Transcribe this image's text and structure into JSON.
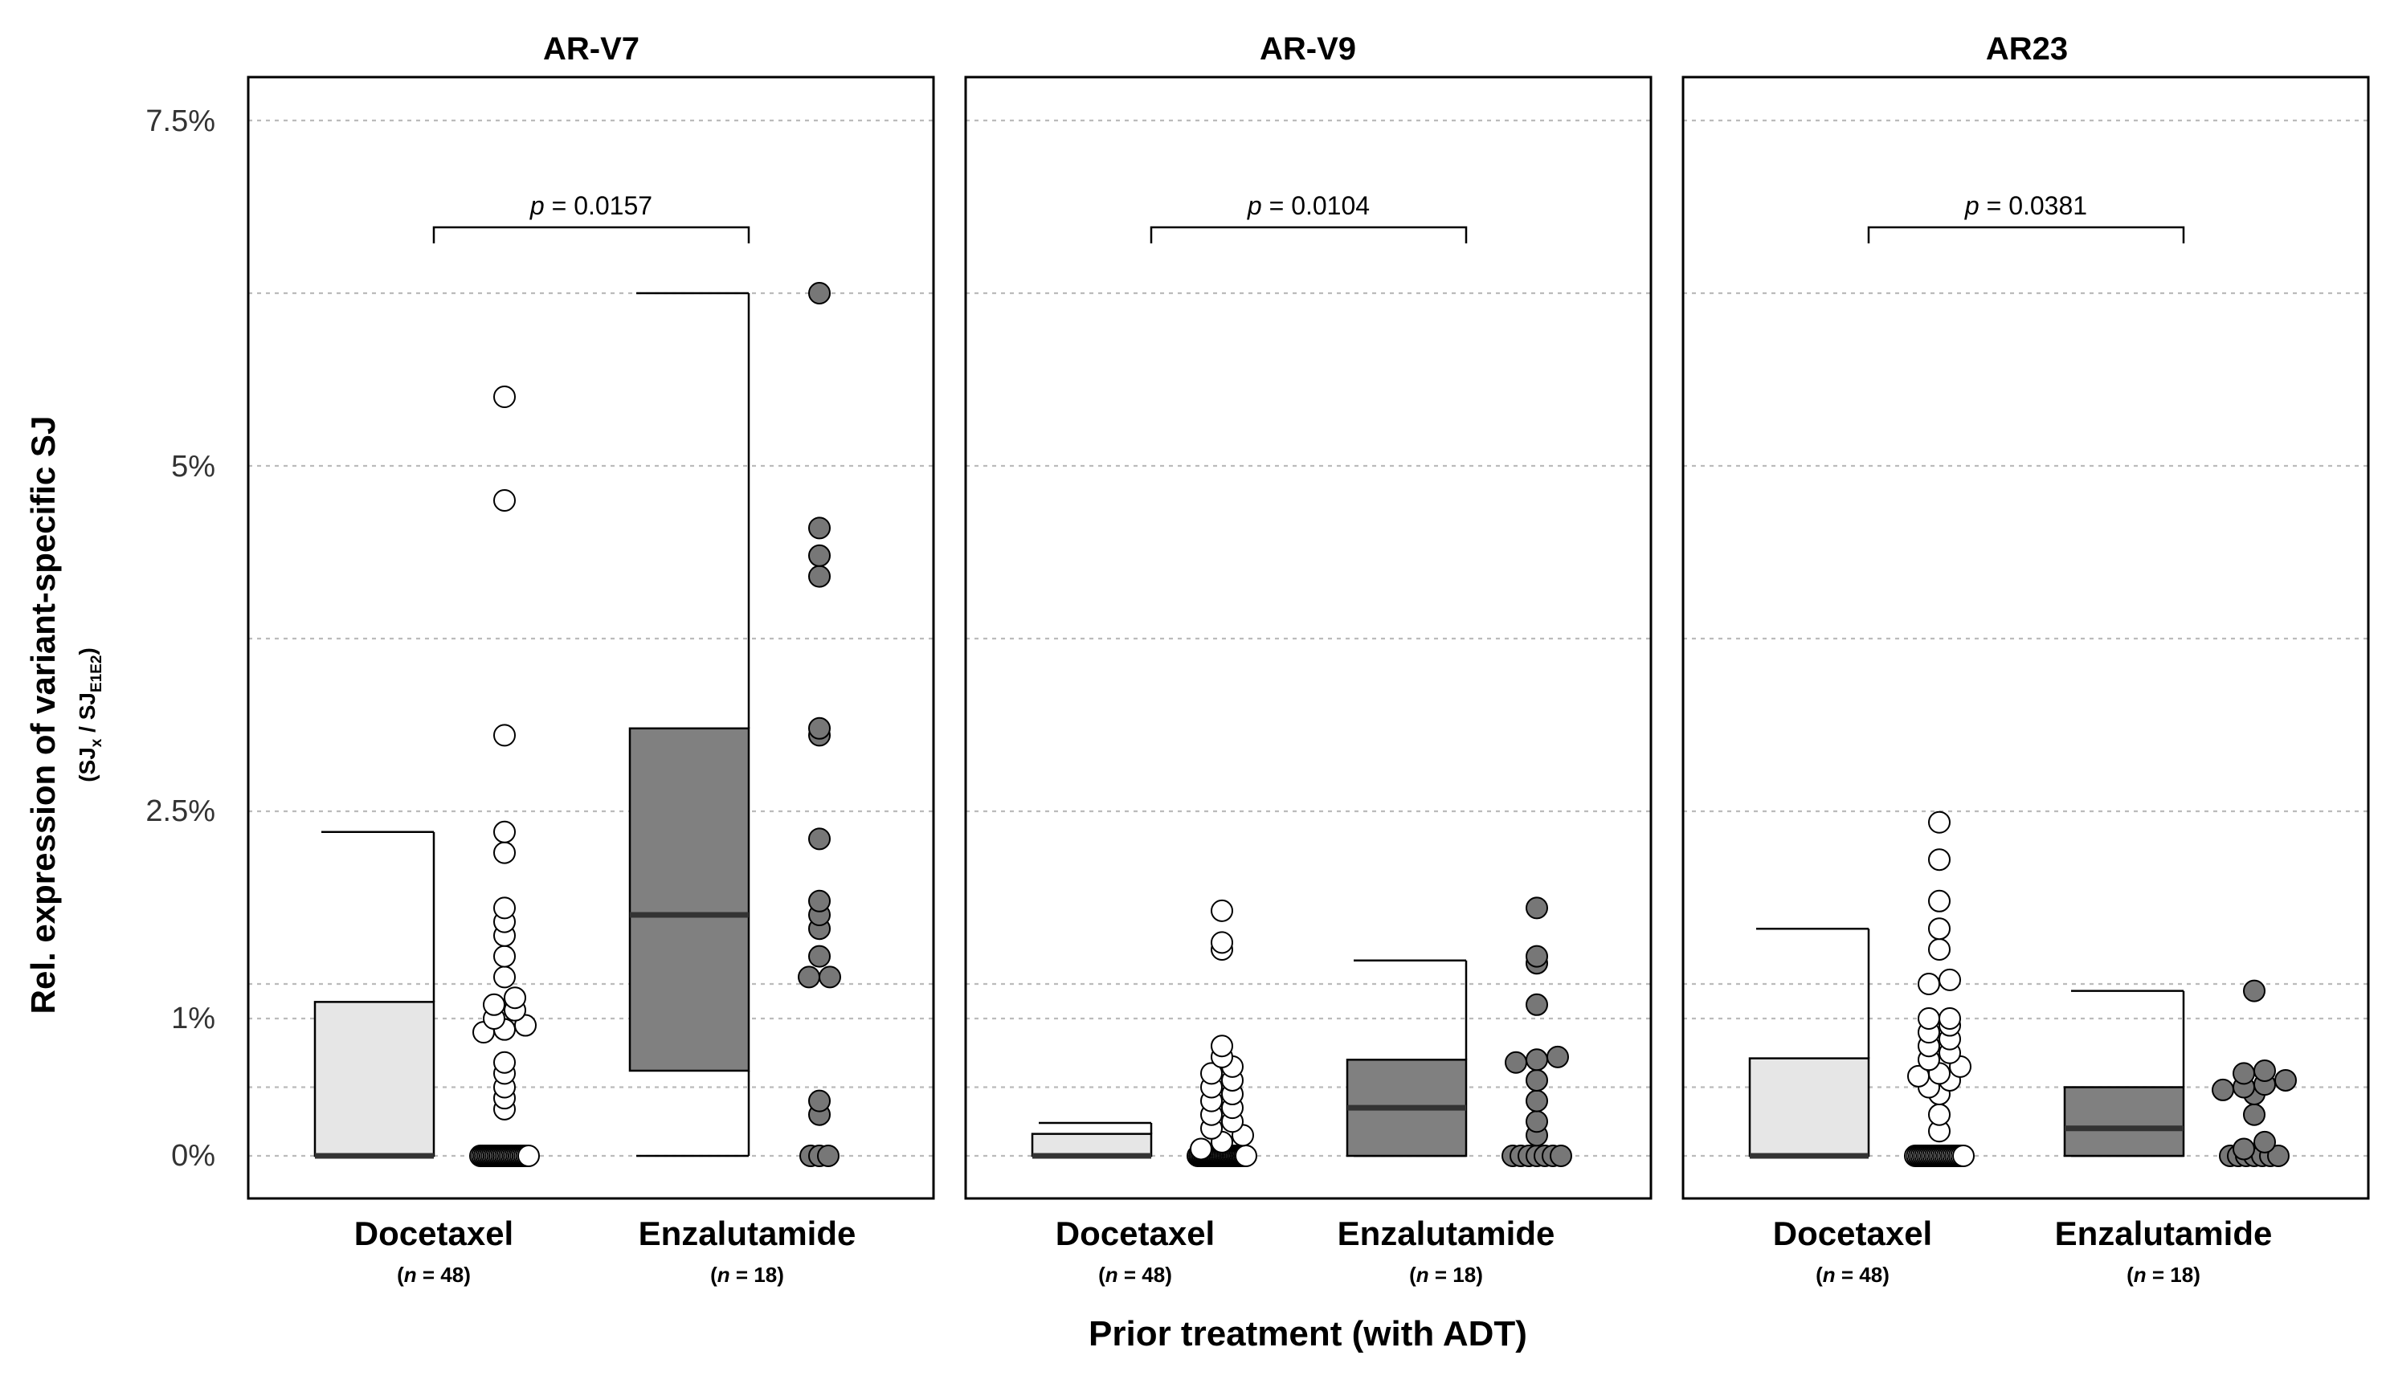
{
  "chart_data": {
    "type": "box",
    "ylabel": "Rel. expression of variant-specific SJ",
    "ylabel_sub": {
      "open": "(SJ",
      "sub_x": "x",
      "mid": " / SJ",
      "sub_e": "E1E2",
      "close": ")"
    },
    "xlabel": "Prior treatment (with ADT)",
    "y_ticks": [
      "0%",
      "1%",
      "2.5%",
      "5%",
      "7.5%"
    ],
    "colors": {
      "docetaxel_fill": "#e6e6e6",
      "enzalutamide_fill": "#808080",
      "grid": "#bbbbbb",
      "frame": "#000000"
    },
    "panels": [
      {
        "title": "AR-V7",
        "p_prefix": "p",
        "p_value": " = 0.0157",
        "groups": [
          {
            "name": "Docetaxel",
            "n_label": "n",
            "n_value": " = 48",
            "box": {
              "q1": 0.0,
              "median": 0.0,
              "q3": 1.12,
              "whisker_low": 0.0,
              "whisker_high": 2.35
            },
            "points": [
              0,
              0,
              0,
              0,
              0,
              0,
              0,
              0,
              0,
              0,
              0,
              0,
              0,
              0,
              0,
              0,
              0,
              0,
              0,
              0,
              0,
              0,
              0,
              0,
              0,
              0,
              0.34,
              0.42,
              0.5,
              0.6,
              0.68,
              0.9,
              0.92,
              0.95,
              1.0,
              1.06,
              1.1,
              1.15,
              1.3,
              1.45,
              1.6,
              1.7,
              1.8,
              2.2,
              2.35,
              3.05,
              4.75,
              5.5
            ]
          },
          {
            "name": "Enzalutamide",
            "n_label": "n",
            "n_value": " = 18",
            "box": {
              "q1": 0.62,
              "median": 1.75,
              "q3": 3.1,
              "whisker_low": 0.0,
              "whisker_high": 6.25
            },
            "points": [
              0,
              0,
              0,
              0.3,
              0.4,
              1.3,
              1.3,
              1.45,
              1.65,
              1.75,
              1.85,
              2.3,
              3.05,
              3.1,
              4.2,
              4.35,
              4.55,
              6.25
            ]
          }
        ]
      },
      {
        "title": "AR-V9",
        "p_prefix": "p",
        "p_value": " = 0.0104",
        "groups": [
          {
            "name": "Docetaxel",
            "n_label": "n",
            "n_value": " = 48",
            "box": {
              "q1": 0.0,
              "median": 0.0,
              "q3": 0.16,
              "whisker_low": 0.0,
              "whisker_high": 0.24
            },
            "points": [
              0,
              0,
              0,
              0,
              0,
              0,
              0,
              0,
              0,
              0,
              0,
              0,
              0,
              0,
              0,
              0,
              0,
              0,
              0,
              0,
              0,
              0,
              0,
              0,
              0,
              0,
              0,
              0,
              0,
              0,
              0.05,
              0.1,
              0.15,
              0.2,
              0.25,
              0.3,
              0.35,
              0.4,
              0.45,
              0.5,
              0.55,
              0.6,
              0.65,
              0.72,
              0.8,
              1.5,
              1.55,
              1.78
            ]
          },
          {
            "name": "Enzalutamide",
            "n_label": "n",
            "n_value": " = 18",
            "box": {
              "q1": 0.0,
              "median": 0.35,
              "q3": 0.7,
              "whisker_low": 0.0,
              "whisker_high": 1.42
            },
            "points": [
              0,
              0,
              0,
              0,
              0,
              0,
              0,
              0.15,
              0.25,
              0.4,
              0.55,
              0.68,
              0.7,
              0.72,
              1.1,
              1.4,
              1.45,
              1.8
            ]
          }
        ]
      },
      {
        "title": "AR23",
        "p_prefix": "p",
        "p_value": " = 0.0381",
        "groups": [
          {
            "name": "Docetaxel",
            "n_label": "n",
            "n_value": " = 48",
            "box": {
              "q1": 0.0,
              "median": 0.0,
              "q3": 0.71,
              "whisker_low": 0.0,
              "whisker_high": 1.65
            },
            "points": [
              0,
              0,
              0,
              0,
              0,
              0,
              0,
              0,
              0,
              0,
              0,
              0,
              0,
              0,
              0,
              0,
              0,
              0,
              0,
              0,
              0,
              0,
              0,
              0,
              0,
              0.18,
              0.3,
              0.45,
              0.5,
              0.55,
              0.58,
              0.6,
              0.65,
              0.7,
              0.75,
              0.8,
              0.85,
              0.9,
              0.95,
              1.0,
              1.0,
              1.25,
              1.28,
              1.5,
              1.65,
              1.85,
              2.15,
              2.42
            ]
          },
          {
            "name": "Enzalutamide",
            "n_label": "n",
            "n_value": " = 18",
            "box": {
              "q1": 0.0,
              "median": 0.2,
              "q3": 0.5,
              "whisker_low": 0.0,
              "whisker_high": 1.2
            },
            "points": [
              0,
              0,
              0,
              0,
              0,
              0,
              0,
              0.05,
              0.1,
              0.3,
              0.45,
              0.48,
              0.5,
              0.52,
              0.55,
              0.6,
              0.62,
              1.2
            ]
          }
        ]
      }
    ]
  }
}
